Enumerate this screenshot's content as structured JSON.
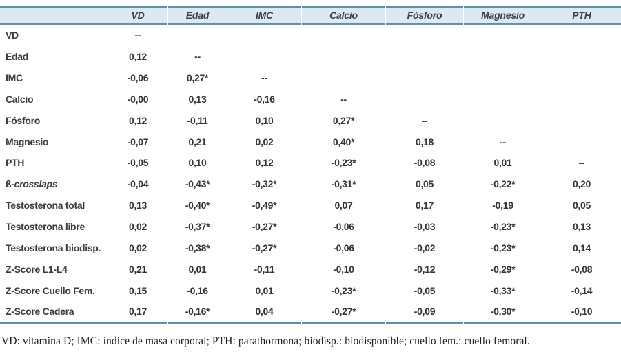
{
  "table": {
    "columns": [
      "",
      "VD",
      "Edad",
      "IMC",
      "Calcio",
      "Fósforo",
      "Magnesio",
      "PTH"
    ],
    "rows": [
      {
        "label": "VD",
        "values": [
          "--",
          "",
          "",
          "",
          "",
          "",
          ""
        ]
      },
      {
        "label": "Edad",
        "values": [
          "0,12",
          "--",
          "",
          "",
          "",
          "",
          ""
        ]
      },
      {
        "label": "IMC",
        "values": [
          "-0,06",
          "0,27*",
          "--",
          "",
          "",
          "",
          ""
        ]
      },
      {
        "label": "Calcio",
        "values": [
          "-0,00",
          "0,13",
          "-0,16",
          "--",
          "",
          "",
          ""
        ]
      },
      {
        "label": "Fósforo",
        "values": [
          "0,12",
          "-0,11",
          "0,10",
          "0,27*",
          "--",
          "",
          ""
        ]
      },
      {
        "label": "Magnesio",
        "values": [
          "-0,07",
          "0,21",
          "0,02",
          "0,40*",
          "0,18",
          "--",
          ""
        ]
      },
      {
        "label": "PTH",
        "values": [
          "-0,05",
          "0,10",
          "0,12",
          "-0,23*",
          "-0,08",
          "0,01",
          "--"
        ]
      },
      {
        "label": "ß-crosslaps",
        "label_parts": [
          {
            "t": "ß-",
            "i": false
          },
          {
            "t": "crosslaps",
            "i": true
          }
        ],
        "values": [
          "-0,04",
          "-0,43*",
          "-0,32*",
          "-0,31*",
          "0,05",
          "-0,22*",
          "0,20"
        ]
      },
      {
        "label": "Testosterona total",
        "values": [
          "0,13",
          "-0,40*",
          "-0,49*",
          "0,07",
          "0,17",
          "-0,19",
          "0,05"
        ]
      },
      {
        "label": "Testosterona libre",
        "values": [
          "0,02",
          "-0,37*",
          "-0,27*",
          "-0,06",
          "-0,03",
          "-0,23*",
          "0,13"
        ]
      },
      {
        "label": "Testosterona biodisp.",
        "values": [
          "0,02",
          "-0,38*",
          "-0,27*",
          "-0,06",
          "-0,02",
          "-0,23*",
          "0,14"
        ]
      },
      {
        "label": "Z-Score L1-L4",
        "values": [
          "0,21",
          "0,01",
          "-0,11",
          "-0,10",
          "-0,12",
          "-0,29*",
          "-0,08"
        ]
      },
      {
        "label": "Z-Score Cuello Fem.",
        "values": [
          "0,15",
          "-0,16",
          "0,01",
          "-0,23*",
          "-0,05",
          "-0,33*",
          "-0,14"
        ]
      },
      {
        "label": "Z-Score Cadera",
        "values": [
          "0,17",
          "-0,16*",
          "0,04",
          "-0,27*",
          "-0,09",
          "-0,30*",
          "-0,10"
        ]
      }
    ]
  },
  "footnote": "VD: vitamina D; IMC: índice de masa corporal; PTH: parathormona; biodisp.: biodisponible; cuello fem.: cuello femoral.",
  "colors": {
    "header_bg": "#dce8f2",
    "rule_blue": "#5e90b0",
    "text": "#343434"
  }
}
